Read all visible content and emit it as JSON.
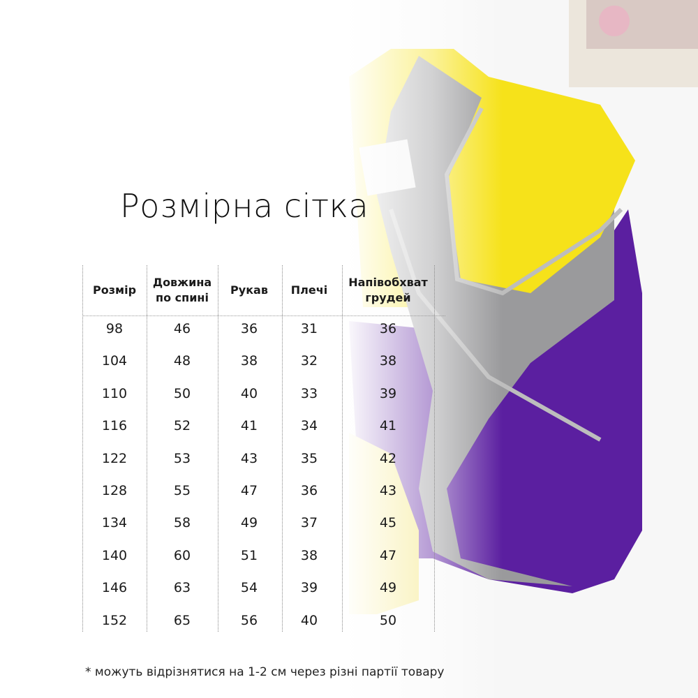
{
  "title": "Розмірна сітка",
  "table": {
    "headers": [
      "Розмір",
      "Довжина по спині",
      "Рукав",
      "Плечі",
      "Напівобхват грудей"
    ],
    "header_lines": [
      [
        "Розмір"
      ],
      [
        "Довжина",
        "по спині"
      ],
      [
        "Рукав"
      ],
      [
        "Плечі"
      ],
      [
        "Напівобхват",
        "грудей"
      ]
    ],
    "rows": [
      [
        "98",
        "46",
        "36",
        "31",
        "36"
      ],
      [
        "104",
        "48",
        "38",
        "32",
        "38"
      ],
      [
        "110",
        "50",
        "40",
        "33",
        "39"
      ],
      [
        "116",
        "52",
        "41",
        "34",
        "41"
      ],
      [
        "122",
        "53",
        "43",
        "35",
        "42"
      ],
      [
        "128",
        "55",
        "47",
        "36",
        "43"
      ],
      [
        "134",
        "58",
        "49",
        "37",
        "45"
      ],
      [
        "140",
        "60",
        "51",
        "38",
        "47"
      ],
      [
        "146",
        "63",
        "54",
        "39",
        "49"
      ],
      [
        "152",
        "65",
        "56",
        "40",
        "50"
      ]
    ]
  },
  "footnote": "* можуть відрізнятися на 1-2 см через різні партії товару",
  "colors": {
    "jacket_yellow": "#f6e21a",
    "jacket_purple": "#5b1fa0",
    "fleece_gray": "#9a9a9c"
  }
}
